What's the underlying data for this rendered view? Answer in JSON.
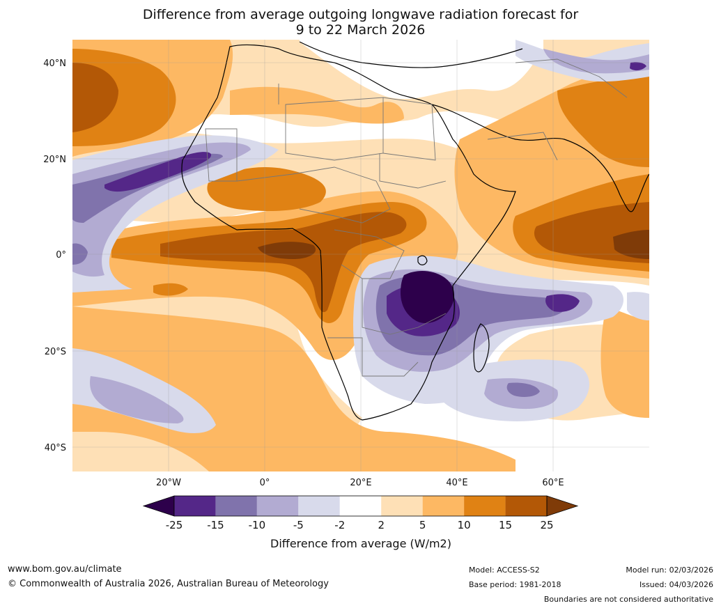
{
  "title": {
    "line1": "Difference from average outgoing longwave radiation forecast for",
    "line2": "9 to 22 March 2026"
  },
  "map": {
    "lat_labels": [
      "40°N",
      "20°N",
      "0°",
      "20°S",
      "40°S"
    ],
    "lon_labels": [
      "20°W",
      "0°",
      "20°E",
      "40°E",
      "60°E"
    ]
  },
  "legend": {
    "title": "Difference from average (W/m2)",
    "tick_labels": [
      "-25",
      "-15",
      "-10",
      "-5",
      "-2",
      "2",
      "5",
      "10",
      "15",
      "25"
    ],
    "colors": [
      "#2d004b",
      "#542788",
      "#8073ac",
      "#b2abd2",
      "#d8daeb",
      "#ffffff",
      "#fee0b6",
      "#fdb863",
      "#e08214",
      "#b35806",
      "#7f3b08"
    ]
  },
  "footer": {
    "website": "www.bom.gov.au/climate",
    "copyright": "© Commonwealth of Australia 2026, Australian Bureau of Meteorology",
    "model": "Model: ACCESS-S2",
    "base_period": "Base period: 1981-2018",
    "model_run": "Model run: 02/03/2026",
    "issued": "Issued: 04/03/2026",
    "disclaimer": "Boundaries are not considered authoritative"
  }
}
